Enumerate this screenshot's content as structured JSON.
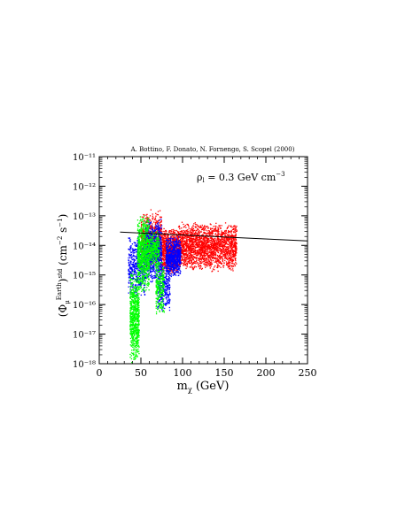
{
  "chart_data": {
    "type": "scatter",
    "credit": "A. Bottino, F. Donato, N. Fornengo, S. Scopel (2000)",
    "annotation": "ρ_l = 0.3 GeV cm⁻³",
    "xlabel": "m_χ (GeV)",
    "ylabel": "(Φ_μ^Earth)^std (cm⁻² s⁻¹)",
    "xlim": [
      0,
      250
    ],
    "ylim_log10": [
      -18,
      -11
    ],
    "y_scale": "log",
    "x_ticks": [
      0,
      50,
      100,
      150,
      200,
      250
    ],
    "x_tick_labels": [
      "0",
      "50",
      "100",
      "150",
      "200",
      "250"
    ],
    "y_ticks_log10": [
      -18,
      -17,
      -16,
      -15,
      -14,
      -13,
      -12,
      -11
    ],
    "y_tick_labels": [
      "10⁻¹⁸",
      "10⁻¹⁷",
      "10⁻¹⁶",
      "10⁻¹⁵",
      "10⁻¹⁴",
      "10⁻¹³",
      "10⁻¹²",
      "10⁻¹¹"
    ],
    "series": [
      {
        "color": "#ff0000",
        "description_points": "dense cloud",
        "regions": [
          {
            "x": [
              50,
              75
            ],
            "log10y_min": -14.8,
            "log10y_max": -12.75,
            "n": 600
          },
          {
            "x": [
              75,
              95
            ],
            "log10y_min": -15.0,
            "log10y_max": -13.4,
            "n": 900
          },
          {
            "x": [
              95,
              165
            ],
            "log10y_min": -14.9,
            "log10y_max": -13.2,
            "n": 2200
          }
        ]
      },
      {
        "color": "#0000ff",
        "regions": [
          {
            "x": [
              35,
              55
            ],
            "log10y_min": -15.8,
            "log10y_max": -13.6,
            "n": 500
          },
          {
            "x": [
              55,
              75
            ],
            "log10y_min": -15.3,
            "log10y_max": -13.1,
            "n": 900
          },
          {
            "x": [
              70,
              85
            ],
            "log10y_min": -16.3,
            "log10y_max": -14.5,
            "n": 300
          },
          {
            "x": [
              80,
              98
            ],
            "log10y_min": -15.1,
            "log10y_max": -13.7,
            "n": 700
          }
        ]
      },
      {
        "color": "#00ff00",
        "regions": [
          {
            "x": [
              37,
              48
            ],
            "log10y_min": -18.0,
            "log10y_max": -14.8,
            "n": 700
          },
          {
            "x": [
              46,
              60
            ],
            "log10y_min": -15.6,
            "log10y_max": -12.9,
            "n": 800
          },
          {
            "x": [
              60,
              72
            ],
            "log10y_min": -14.8,
            "log10y_max": -13.5,
            "n": 300
          },
          {
            "x": [
              68,
              78
            ],
            "log10y_min": -16.4,
            "log10y_max": -14.5,
            "n": 250
          }
        ]
      }
    ],
    "reference_line": {
      "x": [
        25,
        250
      ],
      "log10y": [
        -13.55,
        -13.85
      ],
      "color": "#000000"
    }
  }
}
